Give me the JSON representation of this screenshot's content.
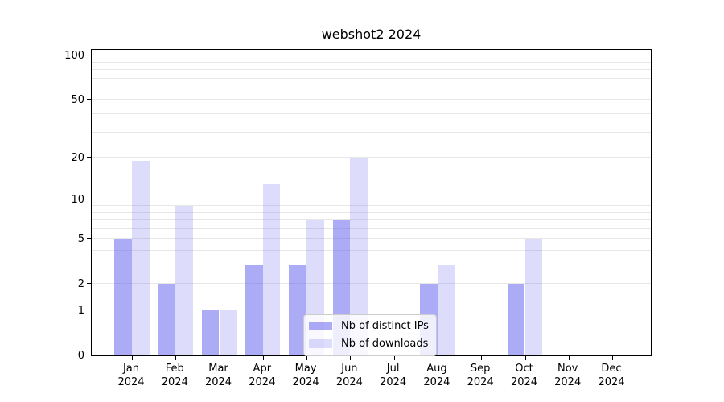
{
  "chart_data": {
    "type": "bar",
    "title": "webshot2 2024",
    "categories": [
      "Jan 2024",
      "Feb 2024",
      "Mar 2024",
      "Apr 2024",
      "May 2024",
      "Jun 2024",
      "Jul 2024",
      "Aug 2024",
      "Sep 2024",
      "Oct 2024",
      "Nov 2024",
      "Dec 2024"
    ],
    "series": [
      {
        "name": "Nb of distinct IPs",
        "color": "rgba(102,102,238,0.55)",
        "values": [
          5,
          2,
          1,
          3,
          3,
          7,
          0,
          2,
          0,
          2,
          0,
          0
        ]
      },
      {
        "name": "Nb of downloads",
        "color": "rgba(102,102,238,0.22)",
        "values": [
          19,
          9,
          1,
          13,
          7,
          20,
          0,
          3,
          0,
          5,
          0,
          0
        ]
      }
    ],
    "xlabel": "",
    "ylabel": "",
    "yscale": "log1p",
    "ylim": [
      0,
      112
    ],
    "yticks": [
      0,
      1,
      2,
      5,
      10,
      20,
      50,
      100
    ],
    "ytick_labels": [
      "0",
      "1",
      "2",
      "5",
      "10",
      "20",
      "50",
      "100"
    ],
    "grid_major": [
      1,
      10,
      100
    ],
    "grid_minor": [
      2,
      3,
      4,
      5,
      6,
      7,
      8,
      9,
      20,
      30,
      40,
      50,
      60,
      70,
      80,
      90
    ],
    "grid": "on",
    "legend_position": "lower center inside plot"
  },
  "colors": {
    "bar_ips": "rgba(102,102,238,0.55)",
    "bar_downloads": "rgba(102,102,238,0.22)",
    "grid_major": "#b3b3b3",
    "grid_minor": "#e7e7e7",
    "spine": "#000000",
    "background": "#ffffff"
  }
}
